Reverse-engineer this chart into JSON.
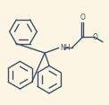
{
  "bg_color": "#fdf5e4",
  "bond_color": "#3a5068",
  "bond_lw": 1.0,
  "text_color": "#3a5068",
  "font_size": 5.5,
  "fig_width": 1.22,
  "fig_height": 1.17,
  "dpi": 100,
  "xlim": [
    0,
    12.2
  ],
  "ylim": [
    0,
    11.7
  ]
}
